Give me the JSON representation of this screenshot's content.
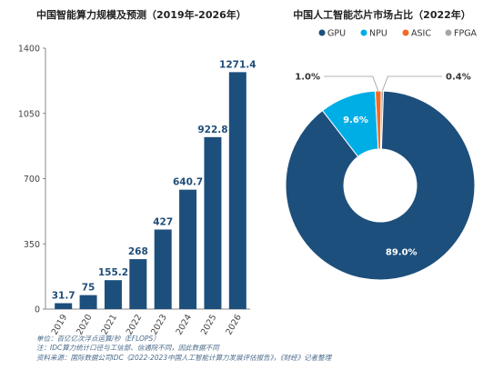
{
  "colors": {
    "bar": "#1d4f7c",
    "axis": "#888888",
    "grid": "#e6e6e6",
    "gpu": "#1d4f7c",
    "npu": "#00aee6",
    "asic": "#f26b21",
    "fpga": "#a6a6a6",
    "label_dark": "#1f4e79"
  },
  "chart_data": [
    {
      "type": "bar",
      "title": "中国智能算力规模及预测（2019年-2026年）",
      "categories": [
        "2019",
        "2020",
        "2021",
        "2022",
        "2023",
        "2024",
        "2025",
        "2026"
      ],
      "values": [
        31.7,
        75,
        155.2,
        268,
        427,
        640.7,
        922.8,
        1271.4
      ],
      "value_labels": [
        "31.7",
        "75",
        "155.2",
        "268",
        "427",
        "640.7",
        "922.8",
        "1271.4"
      ],
      "yticks": [
        0,
        350,
        700,
        1050,
        1400
      ],
      "ylim": [
        0,
        1400
      ],
      "xlabel": "",
      "ylabel": "",
      "grid": false
    },
    {
      "type": "pie",
      "title": "中国人工智能芯片市场占比（2022年）",
      "legend_position": "top",
      "slices": [
        {
          "name": "GPU",
          "value": 89.0
        },
        {
          "name": "NPU",
          "value": 9.6
        },
        {
          "name": "ASIC",
          "value": 1.0
        },
        {
          "name": "FPGA",
          "value": 0.4
        }
      ],
      "value_labels": [
        "89.0%",
        "9.6%",
        "1.0%",
        "0.4%"
      ]
    }
  ],
  "notes": [
    "单位：百亿亿次浮点运算/秒（EFLOPS）",
    "注：IDC算力统计口径与工信部、信通院不同，因此数据不同",
    "资料来源：国际数据公司IDC《2022-2023中国人工智能计算力发展评估报告》，《财经》记者整理"
  ]
}
